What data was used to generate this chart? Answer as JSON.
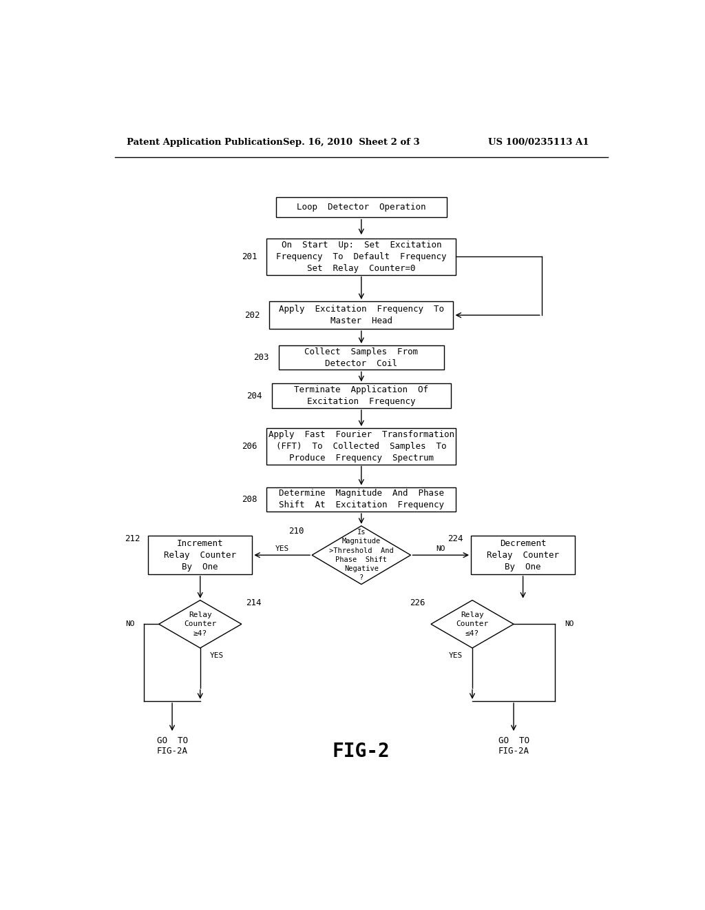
{
  "bg_color": "#ffffff",
  "line_color": "#000000",
  "header_left": "Patent Application Publication",
  "header_center": "Sep. 16, 2010  Sheet 2 of 3",
  "header_right": "US 100/0235113 A1",
  "fig_label": "FIG-2"
}
